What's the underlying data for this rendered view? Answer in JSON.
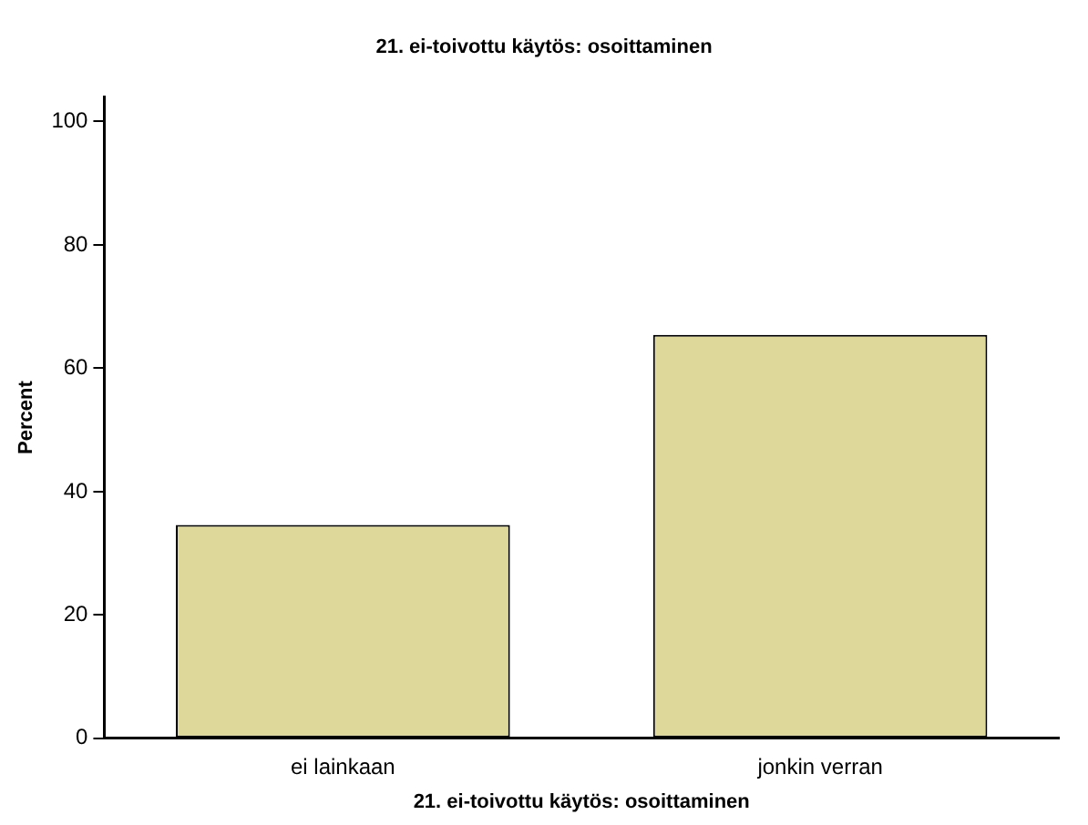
{
  "chart_data": {
    "type": "bar",
    "title": "21. ei-toivottu käytös: osoittaminen",
    "xlabel": "21. ei-toivottu käytös: osoittaminen",
    "ylabel": "Percent",
    "categories": [
      "ei lainkaan",
      "jonkin verran"
    ],
    "values": [
      34.6,
      65.4
    ],
    "color": "#ded99a",
    "ylim": [
      0,
      104
    ],
    "yticks": [
      0,
      20,
      40,
      60,
      80,
      100
    ],
    "grid": false,
    "legend": false
  }
}
